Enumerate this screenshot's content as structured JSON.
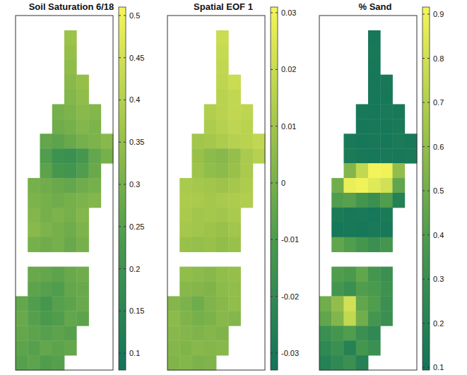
{
  "chart_data": [
    {
      "type": "heatmap",
      "title": "Soil Saturation 6/18",
      "tick_labels": false,
      "colorbar_range": [
        0.08,
        0.51
      ],
      "colorbar_ticks": [
        0.1,
        0.15,
        0.2,
        0.25,
        0.3,
        0.35,
        0.4,
        0.45,
        0.5
      ],
      "cells": [
        [
          null,
          null,
          null,
          null,
          null,
          null,
          null,
          null
        ],
        [
          null,
          null,
          null,
          null,
          0.36,
          null,
          null,
          null
        ],
        [
          null,
          null,
          null,
          null,
          0.35,
          null,
          null,
          null
        ],
        [
          null,
          null,
          null,
          null,
          0.34,
          null,
          null,
          null
        ],
        [
          null,
          null,
          null,
          null,
          0.33,
          0.35,
          null,
          null
        ],
        [
          null,
          null,
          null,
          null,
          0.32,
          0.34,
          null,
          null
        ],
        [
          null,
          null,
          null,
          0.3,
          0.31,
          0.33,
          0.32,
          null
        ],
        [
          null,
          null,
          null,
          0.29,
          0.3,
          0.32,
          0.31,
          null
        ],
        [
          null,
          null,
          0.27,
          0.26,
          0.28,
          0.3,
          0.31,
          0.33
        ],
        [
          null,
          null,
          0.24,
          0.2,
          0.19,
          0.22,
          0.27,
          0.3
        ],
        [
          null,
          null,
          0.26,
          0.22,
          0.21,
          0.24,
          0.28,
          null
        ],
        [
          null,
          0.3,
          0.29,
          0.28,
          0.27,
          0.29,
          0.3,
          null
        ],
        [
          null,
          0.31,
          0.3,
          0.29,
          0.3,
          0.31,
          0.32,
          null
        ],
        [
          null,
          0.32,
          0.3,
          0.31,
          0.3,
          0.32,
          null,
          null
        ],
        [
          null,
          0.33,
          0.31,
          0.3,
          0.29,
          0.31,
          null,
          null
        ],
        [
          null,
          0.3,
          0.29,
          0.3,
          0.28,
          0.3,
          null,
          null
        ],
        [
          null,
          null,
          null,
          null,
          null,
          null,
          null,
          null
        ],
        [
          null,
          0.28,
          0.27,
          0.26,
          0.28,
          0.29,
          null,
          null
        ],
        [
          null,
          0.26,
          0.25,
          0.24,
          0.27,
          0.28,
          null,
          null
        ],
        [
          0.27,
          0.24,
          0.22,
          0.25,
          0.26,
          0.28,
          null,
          null
        ],
        [
          0.28,
          0.25,
          0.23,
          0.24,
          0.27,
          0.26,
          null,
          null
        ],
        [
          0.27,
          0.26,
          0.25,
          0.26,
          0.25,
          null,
          null,
          null
        ],
        [
          0.26,
          0.25,
          0.27,
          0.26,
          0.27,
          null,
          null,
          null
        ],
        [
          0.25,
          0.26,
          0.24,
          0.25,
          null,
          null,
          null,
          null
        ]
      ]
    },
    {
      "type": "heatmap",
      "title": "Spatial EOF 1",
      "tick_labels": false,
      "colorbar_range": [
        -0.033,
        0.031
      ],
      "colorbar_ticks": [
        -0.03,
        -0.02,
        -0.01,
        0,
        0.01,
        0.02,
        0.03
      ],
      "cells": [
        [
          null,
          null,
          null,
          null,
          null,
          null,
          null,
          null
        ],
        [
          null,
          null,
          null,
          null,
          0.02,
          null,
          null,
          null
        ],
        [
          null,
          null,
          null,
          null,
          0.019,
          null,
          null,
          null
        ],
        [
          null,
          null,
          null,
          null,
          0.018,
          null,
          null,
          null
        ],
        [
          null,
          null,
          null,
          null,
          0.017,
          0.02,
          null,
          null
        ],
        [
          null,
          null,
          null,
          null,
          0.016,
          0.018,
          null,
          null
        ],
        [
          null,
          null,
          null,
          0.014,
          0.016,
          0.018,
          0.017,
          null
        ],
        [
          null,
          null,
          null,
          0.013,
          0.015,
          0.017,
          0.016,
          null
        ],
        [
          null,
          null,
          0.01,
          0.011,
          0.013,
          0.015,
          0.016,
          0.018
        ],
        [
          null,
          null,
          0.008,
          0.005,
          0.004,
          0.007,
          0.012,
          0.015
        ],
        [
          null,
          null,
          0.009,
          0.006,
          0.005,
          0.008,
          0.012,
          null
        ],
        [
          null,
          0.012,
          0.011,
          0.01,
          0.009,
          0.011,
          0.013,
          null
        ],
        [
          null,
          0.013,
          0.012,
          0.011,
          0.012,
          0.013,
          0.014,
          null
        ],
        [
          null,
          0.012,
          0.01,
          0.011,
          0.01,
          0.012,
          null,
          null
        ],
        [
          null,
          0.011,
          0.01,
          0.009,
          0.008,
          0.01,
          null,
          null
        ],
        [
          null,
          0.008,
          0.007,
          0.008,
          0.006,
          0.008,
          null,
          null
        ],
        [
          null,
          null,
          null,
          null,
          null,
          null,
          null,
          null
        ],
        [
          null,
          0.006,
          0.005,
          0.004,
          0.006,
          0.007,
          null,
          null
        ],
        [
          null,
          0.004,
          0.003,
          0.002,
          0.005,
          0.006,
          null,
          null
        ],
        [
          0.003,
          0.001,
          -0.002,
          0.002,
          0.004,
          0.006,
          null,
          null
        ],
        [
          0.005,
          0.002,
          0,
          0.001,
          0.004,
          0.003,
          null,
          null
        ],
        [
          0.004,
          0.003,
          0.002,
          0.003,
          0.002,
          null,
          null,
          null
        ],
        [
          0.003,
          0.002,
          0.004,
          0.003,
          0.004,
          null,
          null,
          null
        ],
        [
          0.002,
          0.003,
          0.001,
          0.002,
          null,
          null,
          null,
          null
        ]
      ]
    },
    {
      "type": "heatmap",
      "title": "% Sand",
      "tick_labels": false,
      "colorbar_range": [
        0.094,
        0.916
      ],
      "colorbar_ticks": [
        0.1,
        0.2,
        0.3,
        0.4,
        0.5,
        0.6,
        0.7,
        0.8,
        0.9
      ],
      "cells": [
        [
          null,
          null,
          null,
          null,
          null,
          null,
          null,
          null
        ],
        [
          null,
          null,
          null,
          null,
          0.12,
          null,
          null,
          null
        ],
        [
          null,
          null,
          null,
          null,
          0.13,
          null,
          null,
          null
        ],
        [
          null,
          null,
          null,
          null,
          0.12,
          null,
          null,
          null
        ],
        [
          null,
          null,
          null,
          null,
          0.12,
          0.13,
          null,
          null
        ],
        [
          null,
          null,
          null,
          null,
          0.12,
          0.12,
          null,
          null
        ],
        [
          null,
          null,
          null,
          0.13,
          0.12,
          0.14,
          0.13,
          null
        ],
        [
          null,
          null,
          null,
          0.12,
          0.13,
          0.12,
          0.14,
          null
        ],
        [
          null,
          null,
          0.14,
          0.12,
          0.13,
          0.12,
          0.15,
          0.13
        ],
        [
          null,
          null,
          0.15,
          0.13,
          0.12,
          0.14,
          0.13,
          0.14
        ],
        [
          null,
          null,
          0.55,
          0.75,
          0.91,
          0.9,
          0.6,
          null
        ],
        [
          null,
          0.5,
          0.88,
          0.9,
          0.85,
          0.8,
          0.45,
          null
        ],
        [
          null,
          0.4,
          0.42,
          0.35,
          0.3,
          0.4,
          0.2,
          null
        ],
        [
          null,
          0.15,
          0.13,
          0.14,
          0.12,
          0.15,
          null,
          null
        ],
        [
          null,
          0.12,
          0.13,
          0.12,
          0.14,
          0.13,
          null,
          null
        ],
        [
          null,
          0.45,
          0.4,
          0.35,
          0.3,
          0.35,
          null,
          null
        ],
        [
          null,
          null,
          null,
          null,
          null,
          null,
          null,
          null
        ],
        [
          null,
          0.4,
          0.38,
          0.45,
          0.35,
          0.3,
          null,
          null
        ],
        [
          null,
          0.35,
          0.3,
          0.4,
          0.38,
          0.32,
          null,
          null
        ],
        [
          0.5,
          0.6,
          0.8,
          0.45,
          0.4,
          0.3,
          null,
          null
        ],
        [
          0.45,
          0.55,
          0.75,
          0.5,
          0.35,
          0.3,
          null,
          null
        ],
        [
          0.3,
          0.35,
          0.4,
          0.3,
          0.25,
          null,
          null,
          null
        ],
        [
          0.25,
          0.3,
          0.2,
          0.35,
          0.3,
          null,
          null,
          null
        ],
        [
          0.2,
          0.25,
          0.3,
          0.2,
          null,
          null,
          null,
          null
        ]
      ]
    }
  ]
}
